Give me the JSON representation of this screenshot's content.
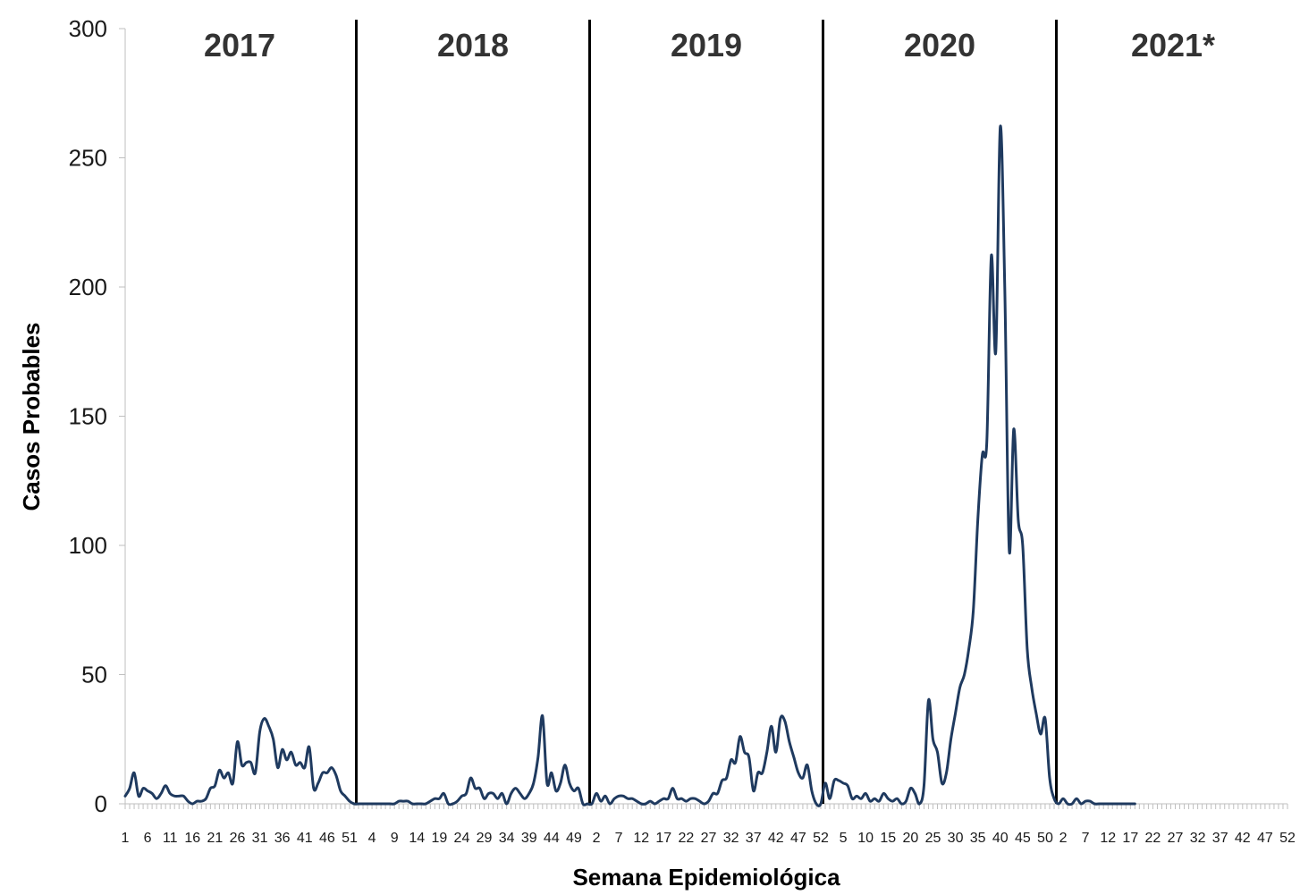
{
  "chart_data": {
    "type": "line",
    "xlabel": "Semana Epidemiológica",
    "ylabel": "Casos Probables",
    "ylim": [
      0,
      300
    ],
    "yticks": [
      0,
      50,
      100,
      150,
      200,
      250,
      300
    ],
    "grid": false,
    "legend": "none",
    "colors": {
      "line": "#1f3a5f",
      "divider": "#000000"
    },
    "years": [
      {
        "label": "2017",
        "weeks": 52
      },
      {
        "label": "2018",
        "weeks": 52
      },
      {
        "label": "2019",
        "weeks": 52
      },
      {
        "label": "2020",
        "weeks": 52
      },
      {
        "label": "2021*",
        "weeks": 52
      }
    ],
    "x_tick_labels": [
      [
        "1",
        "6",
        "11",
        "16",
        "21",
        "26",
        "31",
        "36",
        "41",
        "46",
        "51"
      ],
      [
        "4",
        "9",
        "14",
        "19",
        "24",
        "29",
        "34",
        "39",
        "44",
        "49"
      ],
      [
        "2",
        "7",
        "12",
        "17",
        "22",
        "27",
        "32",
        "37",
        "42",
        "47",
        "52"
      ],
      [
        "5",
        "10",
        "15",
        "20",
        "25",
        "30",
        "35",
        "40",
        "45",
        "50"
      ],
      [
        "2",
        "7",
        "12",
        "17",
        "22",
        "27",
        "32",
        "37",
        "42",
        "47",
        "52"
      ]
    ],
    "series": [
      {
        "values": [
          3,
          6,
          12,
          3,
          6,
          5,
          4,
          2,
          4,
          7,
          4,
          3,
          3,
          3,
          1,
          0,
          1,
          1,
          2,
          6,
          7,
          13,
          10,
          12,
          8,
          24,
          15,
          16,
          16,
          12,
          28,
          33,
          30,
          25,
          14,
          21,
          17,
          20,
          15,
          16,
          14,
          22,
          6,
          8,
          12,
          12,
          14,
          11,
          5,
          3,
          1,
          0,
          0,
          0,
          0,
          0,
          0,
          0,
          0,
          0,
          0,
          1,
          1,
          1,
          0,
          0,
          0,
          0,
          1,
          2,
          2,
          4,
          0,
          0,
          1,
          3,
          4,
          10,
          6,
          6,
          2,
          4,
          4,
          2,
          4,
          0,
          4,
          6,
          4,
          2,
          4,
          8,
          18,
          34,
          8,
          12,
          5,
          8,
          15,
          8,
          5,
          6,
          0,
          0,
          0,
          4,
          1,
          3,
          0,
          2,
          3,
          3,
          2,
          2,
          1,
          0,
          0,
          1,
          0,
          1,
          2,
          2,
          6,
          2,
          2,
          1,
          2,
          2,
          1,
          0,
          1,
          4,
          4,
          9,
          10,
          17,
          16,
          26,
          20,
          18,
          5,
          12,
          12,
          20,
          30,
          20,
          33,
          32,
          24,
          18,
          12,
          10,
          15,
          5,
          0,
          0,
          8,
          2,
          9,
          9,
          8,
          7,
          2,
          3,
          2,
          4,
          1,
          2,
          1,
          4,
          2,
          1,
          2,
          0,
          1,
          6,
          4,
          0,
          7,
          40,
          25,
          20,
          8,
          12,
          25,
          35,
          45,
          50,
          60,
          75,
          110,
          135,
          140,
          212,
          175,
          262,
          200,
          98,
          145,
          110,
          100,
          60,
          45,
          35,
          27,
          33,
          10,
          2,
          0,
          2,
          0,
          0,
          2,
          0,
          1,
          1,
          0,
          0,
          0,
          0,
          0,
          0,
          0,
          0,
          0,
          0
        ]
      }
    ]
  }
}
